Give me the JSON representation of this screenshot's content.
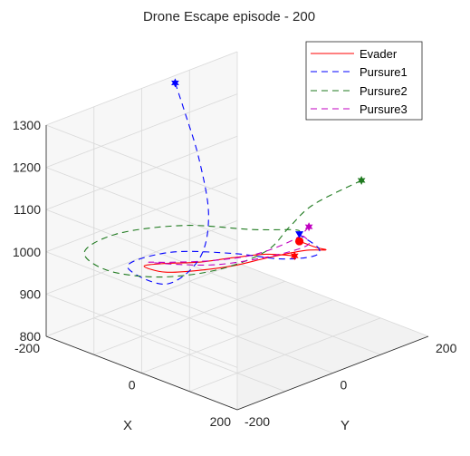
{
  "chart_data": {
    "type": "line",
    "projection": "3d",
    "title": "Drone Escape episode - 200",
    "xlabel": "X",
    "ylabel": "Y",
    "zlabel": "",
    "xlim": [
      -200,
      200
    ],
    "ylim": [
      -200,
      200
    ],
    "zlim": [
      800,
      1300
    ],
    "xticks": [
      "-200",
      "0",
      "200"
    ],
    "yticks": [
      "-200",
      "0",
      "200"
    ],
    "zticks": [
      "800",
      "900",
      "1000",
      "1100",
      "1200",
      "1300"
    ],
    "grid": true,
    "legend_position": "top-right",
    "series": [
      {
        "name": "Evader",
        "color": "#ff0000",
        "style": "solid",
        "start_marker": "hexagram",
        "end_marker": "filled-circle",
        "points": [
          [
            80,
            40,
            1008
          ],
          [
            55,
            5,
            1016
          ],
          [
            25,
            -35,
            1012
          ],
          [
            -5,
            -75,
            1006
          ],
          [
            -40,
            -110,
            1003
          ],
          [
            -70,
            -125,
            990
          ],
          [
            -45,
            -105,
            978
          ],
          [
            -5,
            -70,
            985
          ],
          [
            30,
            -35,
            996
          ],
          [
            55,
            10,
            1006
          ],
          [
            70,
            70,
            1003
          ],
          [
            70,
            115,
            985
          ],
          [
            30,
            135,
            965
          ],
          [
            -10,
            140,
            960
          ]
        ]
      },
      {
        "name": "Pursure1",
        "color": "#0000ff",
        "style": "dashed",
        "start_marker": "hexagram",
        "end_marker": "filled-triangle",
        "points": [
          [
            -180,
            50,
            1300
          ],
          [
            -160,
            50,
            1240
          ],
          [
            -120,
            40,
            1150
          ],
          [
            -60,
            0,
            1060
          ],
          [
            -20,
            -60,
            1000
          ],
          [
            -10,
            -140,
            980
          ],
          [
            -70,
            -160,
            1005
          ],
          [
            -40,
            -100,
            1025
          ],
          [
            20,
            -30,
            1018
          ],
          [
            70,
            20,
            1005
          ],
          [
            80,
            80,
            990
          ],
          [
            40,
            130,
            970
          ],
          [
            -10,
            140,
            975
          ]
        ]
      },
      {
        "name": "Pursure2",
        "color": "#1f7a1f",
        "style": "dashed",
        "start_marker": "hexagram",
        "end_marker": "none",
        "points": [
          [
            -60,
            320,
            1004
          ],
          [
            -40,
            200,
            1008
          ],
          [
            0,
            110,
            1012
          ],
          [
            40,
            20,
            1010
          ],
          [
            40,
            -80,
            1010
          ],
          [
            0,
            -160,
            1010
          ],
          [
            -70,
            -200,
            1012
          ],
          [
            -150,
            -170,
            1008
          ],
          [
            -170,
            -80,
            1004
          ],
          [
            -120,
            10,
            1006
          ],
          [
            -40,
            70,
            1005
          ],
          [
            0,
            120,
            1000
          ],
          [
            -10,
            140,
            980
          ]
        ]
      },
      {
        "name": "Pursure3",
        "color": "#c000c0",
        "style": "dashed",
        "start_marker": "hexagram",
        "end_marker": "none",
        "points": [
          [
            70,
            80,
            1055
          ],
          [
            60,
            60,
            1030
          ],
          [
            40,
            0,
            1012
          ],
          [
            10,
            -60,
            1010
          ],
          [
            -30,
            -110,
            1010
          ],
          [
            -55,
            -130,
            1008
          ],
          [
            -25,
            -90,
            998
          ],
          [
            10,
            -50,
            996
          ],
          [
            40,
            10,
            998
          ],
          [
            50,
            70,
            995
          ],
          [
            30,
            120,
            980
          ],
          [
            0,
            140,
            975
          ],
          [
            -10,
            140,
            972
          ]
        ]
      }
    ]
  }
}
